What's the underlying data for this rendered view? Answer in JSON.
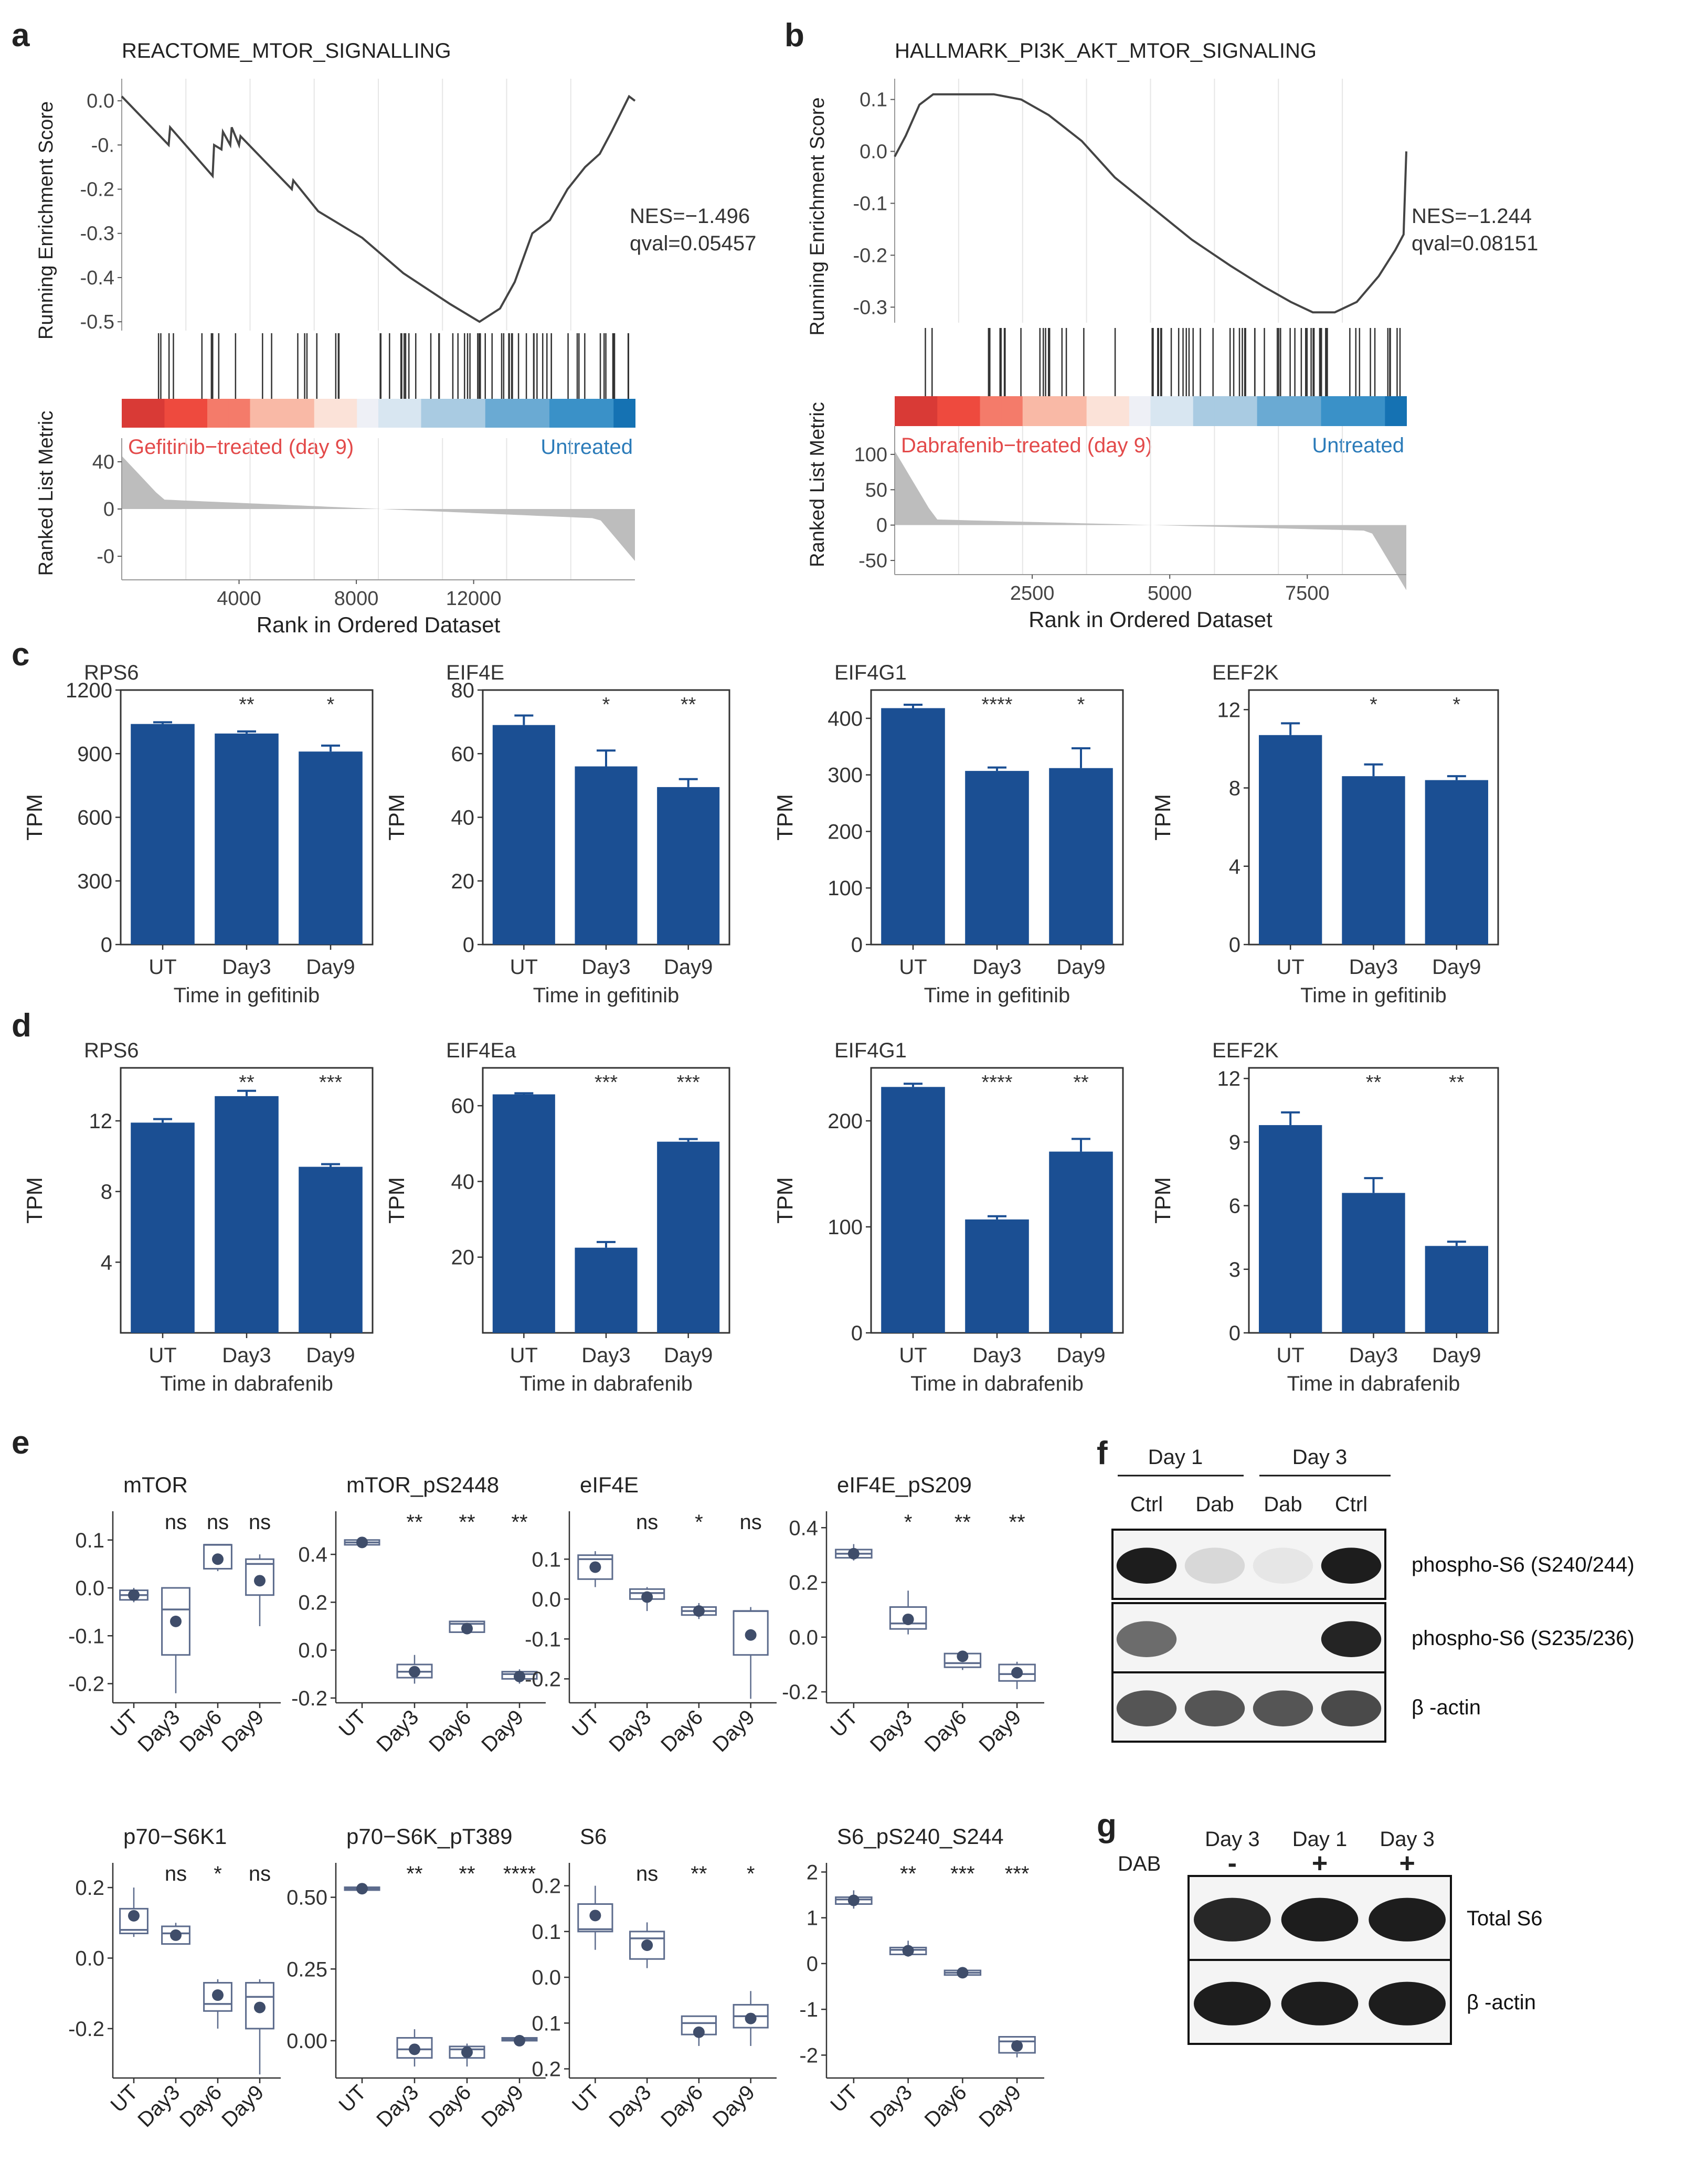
{
  "colors": {
    "bar": "#1b4f93",
    "box": "#5c6b8c",
    "point": "#3f4d6a",
    "curve": "#444444",
    "grid": "#e6e6e6",
    "metric": "#bdbdbd",
    "red_label": "#e34a4a",
    "blue_label": "#2b7bb9"
  },
  "panel_letters": {
    "a": "a",
    "b": "b",
    "c": "c",
    "d": "d",
    "e": "e",
    "f": "f",
    "g": "g"
  },
  "gsea": [
    {
      "letter": "a",
      "title": "REACTOME_MTOR_SIGNALLING",
      "nes": "NES=−1.496",
      "qval": "qval=0.05457",
      "ylabel_top": "Running Enrichment Score",
      "ylabel_bottom": "Ranked List Metric",
      "xlabel": "Rank in Ordered Dataset",
      "left_label": "Gefitinib−treated (day 9)",
      "right_label": "Untreated",
      "es_ticks": [
        "0.0",
        "-0.",
        "-0.2",
        "-0.3",
        "-0.4",
        "-0.5"
      ],
      "es_tick_values": [
        0,
        -0.1,
        -0.2,
        -0.3,
        -0.4,
        -0.5
      ],
      "es_range": [
        -0.52,
        0.05
      ],
      "metric_ticks": [
        "40",
        "0",
        "-0"
      ],
      "metric_tick_values": [
        40,
        0,
        -40
      ],
      "metric_range": [
        -60,
        60
      ],
      "x_ticks": [
        "4000",
        "8000",
        "12000"
      ],
      "x_tick_values": [
        4000,
        8000,
        12000
      ],
      "x_max": 17500,
      "curve": [
        [
          0,
          0.01
        ],
        [
          1600,
          -0.1
        ],
        [
          1650,
          -0.06
        ],
        [
          3100,
          -0.17
        ],
        [
          3150,
          -0.1
        ],
        [
          3400,
          -0.11
        ],
        [
          3450,
          -0.07
        ],
        [
          3700,
          -0.1
        ],
        [
          3750,
          -0.06
        ],
        [
          4000,
          -0.1
        ],
        [
          4050,
          -0.08
        ],
        [
          5800,
          -0.2
        ],
        [
          5850,
          -0.18
        ],
        [
          6700,
          -0.25
        ],
        [
          8200,
          -0.31
        ],
        [
          9600,
          -0.39
        ],
        [
          11200,
          -0.46
        ],
        [
          12200,
          -0.5
        ],
        [
          12900,
          -0.47
        ],
        [
          13400,
          -0.41
        ],
        [
          14000,
          -0.3
        ],
        [
          14600,
          -0.27
        ],
        [
          15200,
          -0.2
        ],
        [
          15800,
          -0.15
        ],
        [
          16300,
          -0.12
        ],
        [
          16700,
          -0.07
        ],
        [
          17000,
          -0.03
        ],
        [
          17300,
          0.01
        ],
        [
          17500,
          0.0
        ]
      ]
    },
    {
      "letter": "b",
      "title": "HALLMARK_PI3K_AKT_MTOR_SIGNALING",
      "nes": "NES=−1.244",
      "qval": "qval=0.08151",
      "ylabel_top": "Running Enrichment Score",
      "ylabel_bottom": "Ranked List Metric",
      "xlabel": "Rank in Ordered Dataset",
      "left_label": "Dabrafenib−treated (day 9)",
      "right_label": "Untreated",
      "es_ticks": [
        "0.1",
        "0.0",
        "-0.1",
        "-0.2",
        "-0.3"
      ],
      "es_tick_values": [
        0.1,
        0,
        -0.1,
        -0.2,
        -0.3
      ],
      "es_range": [
        -0.33,
        0.14
      ],
      "metric_ticks": [
        "100",
        "50",
        "0",
        "-50"
      ],
      "metric_tick_values": [
        100,
        50,
        0,
        -50
      ],
      "metric_range": [
        -70,
        140
      ],
      "x_ticks": [
        "2500",
        "5000",
        "7500"
      ],
      "x_tick_values": [
        2500,
        5000,
        7500
      ],
      "x_max": 9300,
      "curve": [
        [
          0,
          -0.01
        ],
        [
          200,
          0.03
        ],
        [
          450,
          0.09
        ],
        [
          700,
          0.11
        ],
        [
          1200,
          0.11
        ],
        [
          1800,
          0.11
        ],
        [
          2300,
          0.1
        ],
        [
          2800,
          0.07
        ],
        [
          3400,
          0.02
        ],
        [
          4000,
          -0.05
        ],
        [
          4700,
          -0.11
        ],
        [
          5400,
          -0.17
        ],
        [
          6100,
          -0.22
        ],
        [
          6700,
          -0.26
        ],
        [
          7200,
          -0.29
        ],
        [
          7600,
          -0.31
        ],
        [
          8000,
          -0.31
        ],
        [
          8400,
          -0.29
        ],
        [
          8800,
          -0.24
        ],
        [
          9100,
          -0.19
        ],
        [
          9250,
          -0.16
        ],
        [
          9300,
          0.0
        ]
      ]
    }
  ],
  "bar_rows": [
    {
      "letter": "c",
      "xlabel": "Time in gefitinib",
      "charts": [
        {
          "title": "RPS6",
          "ylabel": "TPM",
          "yticks": [
            "0",
            "300",
            "600",
            "900",
            "1200"
          ],
          "ymax": 1200,
          "categories": [
            "UT",
            "Day3",
            "Day9"
          ],
          "values": [
            1040,
            995,
            910
          ],
          "errors": [
            8,
            10,
            28
          ],
          "signif": [
            "",
            "**",
            "*"
          ]
        },
        {
          "title": "EIF4E",
          "ylabel": "TPM",
          "yticks": [
            "0",
            "20",
            "40",
            "60",
            "80"
          ],
          "ymax": 80,
          "categories": [
            "UT",
            "Day3",
            "Day9"
          ],
          "values": [
            69,
            56,
            49.5
          ],
          "errors": [
            3,
            5,
            2.5
          ],
          "signif": [
            "",
            "*",
            "**"
          ]
        },
        {
          "title": "EIF4G1",
          "ylabel": "TPM",
          "yticks": [
            "0",
            "100",
            "200",
            "300",
            "400"
          ],
          "ymax": 450,
          "categories": [
            "UT",
            "Day3",
            "Day9"
          ],
          "values": [
            418,
            307,
            312
          ],
          "errors": [
            6,
            6,
            35
          ],
          "signif": [
            "",
            "****",
            "*"
          ]
        },
        {
          "title": "EEF2K",
          "ylabel": "TPM",
          "yticks": [
            "0",
            "4",
            "8",
            "12"
          ],
          "ymax": 13,
          "categories": [
            "UT",
            "Day3",
            "Day9"
          ],
          "values": [
            10.7,
            8.6,
            8.4
          ],
          "errors": [
            0.6,
            0.6,
            0.2
          ],
          "signif": [
            "",
            "*",
            "*"
          ]
        }
      ]
    },
    {
      "letter": "d",
      "xlabel": "Time in dabrafenib",
      "charts": [
        {
          "title": "RPS6",
          "ylabel": "TPM",
          "yticks": [
            "4",
            "8",
            "12"
          ],
          "ytick_values": [
            4,
            8,
            12
          ],
          "ymax": 15,
          "categories": [
            "UT",
            "Day3",
            "Day9"
          ],
          "values": [
            11.9,
            13.4,
            9.4
          ],
          "errors": [
            0.2,
            0.3,
            0.15
          ],
          "signif": [
            "",
            "**",
            "***"
          ]
        },
        {
          "title": "EIF4Ea",
          "ylabel": "TPM",
          "yticks": [
            "20",
            "40",
            "60"
          ],
          "ytick_values": [
            20,
            40,
            60
          ],
          "ymax": 70,
          "categories": [
            "UT",
            "Day3",
            "Day9"
          ],
          "values": [
            63,
            22.5,
            50.5
          ],
          "errors": [
            0.3,
            1.5,
            0.7
          ],
          "signif": [
            "",
            "***",
            "***"
          ]
        },
        {
          "title": "EIF4G1",
          "ylabel": "TPM",
          "yticks": [
            "0",
            "100",
            "200"
          ],
          "ytick_values": [
            0,
            100,
            200
          ],
          "ymax": 250,
          "categories": [
            "UT",
            "Day3",
            "Day9"
          ],
          "values": [
            232,
            107,
            171
          ],
          "errors": [
            3,
            3,
            12
          ],
          "signif": [
            "",
            "****",
            "**"
          ]
        },
        {
          "title": "EEF2K",
          "ylabel": "TPM",
          "yticks": [
            "0",
            "3",
            "6",
            "9",
            "12"
          ],
          "ytick_values": [
            0,
            3,
            6,
            9,
            12
          ],
          "ymax": 12.5,
          "categories": [
            "UT",
            "Day3",
            "Day9"
          ],
          "values": [
            9.8,
            6.6,
            4.1
          ],
          "errors": [
            0.6,
            0.7,
            0.2
          ],
          "signif": [
            "",
            "**",
            "**"
          ]
        }
      ]
    }
  ],
  "rppa": {
    "letter": "e",
    "categories": [
      "UT",
      "Day3",
      "Day6",
      "Day9"
    ],
    "charts": [
      {
        "title": "mTOR",
        "yticks": [
          "0.1",
          "0.0",
          "-0.1",
          "-0.2"
        ],
        "ytick_values": [
          0.1,
          0,
          -0.1,
          -0.2
        ],
        "yrange": [
          -0.24,
          0.16
        ],
        "signif": [
          "",
          "ns",
          "ns",
          "ns"
        ],
        "boxes": [
          [
            -0.03,
            -0.025,
            -0.015,
            -0.005,
            0.0
          ],
          [
            -0.22,
            -0.14,
            -0.045,
            0.0,
            0.0
          ],
          [
            0.035,
            0.04,
            0.09,
            0.09,
            0.09
          ],
          [
            -0.08,
            -0.015,
            0.05,
            0.06,
            0.07
          ]
        ],
        "means": [
          -0.015,
          -0.07,
          0.06,
          0.015
        ]
      },
      {
        "title": "mTOR_pS2448",
        "yticks": [
          "0.4",
          "0.2",
          "0.0",
          "-0.2"
        ],
        "ytick_values": [
          0.4,
          0.2,
          0,
          -0.2
        ],
        "yrange": [
          -0.22,
          0.58
        ],
        "signif": [
          "",
          "**",
          "**",
          "**"
        ],
        "boxes": [
          [
            0.43,
            0.44,
            0.45,
            0.46,
            0.47
          ],
          [
            -0.14,
            -0.115,
            -0.09,
            -0.06,
            -0.02
          ],
          [
            0.07,
            0.075,
            0.11,
            0.12,
            0.12
          ],
          [
            -0.14,
            -0.12,
            -0.1,
            -0.09,
            -0.08
          ]
        ],
        "means": [
          0.45,
          -0.09,
          0.09,
          -0.11
        ]
      },
      {
        "title": "eIF4E",
        "yticks": [
          "0.1",
          "0.0",
          "-0.1",
          "-0.2"
        ],
        "ytick_values": [
          0.1,
          0,
          -0.1,
          -0.2
        ],
        "yrange": [
          -0.26,
          0.22
        ],
        "signif": [
          "",
          "ns",
          "*",
          "ns"
        ],
        "boxes": [
          [
            0.03,
            0.05,
            0.1,
            0.11,
            0.12
          ],
          [
            -0.03,
            0.0,
            0.015,
            0.025,
            0.03
          ],
          [
            -0.05,
            -0.04,
            -0.03,
            -0.02,
            -0.01
          ],
          [
            -0.25,
            -0.14,
            -0.03,
            -0.03,
            -0.02
          ]
        ],
        "means": [
          0.08,
          0.005,
          -0.03,
          -0.09
        ]
      },
      {
        "title": "eIF4E_pS209",
        "yticks": [
          "0.4",
          "0.2",
          "0.0",
          "-0.2"
        ],
        "ytick_values": [
          0.4,
          0.2,
          0,
          -0.2
        ],
        "yrange": [
          -0.24,
          0.46
        ],
        "signif": [
          "",
          "*",
          "**",
          "**"
        ],
        "boxes": [
          [
            0.28,
            0.29,
            0.305,
            0.32,
            0.34
          ],
          [
            0.01,
            0.03,
            0.05,
            0.11,
            0.17
          ],
          [
            -0.12,
            -0.11,
            -0.095,
            -0.06,
            -0.05
          ],
          [
            -0.19,
            -0.16,
            -0.135,
            -0.1,
            -0.09
          ]
        ],
        "means": [
          0.305,
          0.065,
          -0.07,
          -0.13
        ]
      },
      {
        "title": "p70−S6K1",
        "yticks": [
          "0.2",
          "0.0",
          "-0.2"
        ],
        "ytick_values": [
          0.2,
          0,
          -0.2
        ],
        "yrange": [
          -0.34,
          0.27
        ],
        "signif": [
          "",
          "ns",
          "*",
          "ns"
        ],
        "boxes": [
          [
            0.06,
            0.07,
            0.08,
            0.14,
            0.2
          ],
          [
            0.04,
            0.04,
            0.07,
            0.09,
            0.1
          ],
          [
            -0.2,
            -0.15,
            -0.13,
            -0.07,
            -0.06
          ],
          [
            -0.33,
            -0.2,
            -0.11,
            -0.07,
            -0.06
          ]
        ],
        "means": [
          0.12,
          0.065,
          -0.105,
          -0.14
        ]
      },
      {
        "title": "p70−S6K_pT389",
        "yticks": [
          "0.50",
          "0.25",
          "0.00"
        ],
        "ytick_values": [
          0.5,
          0.25,
          0
        ],
        "yrange": [
          -0.13,
          0.62
        ],
        "signif": [
          "",
          "**",
          "**",
          "****"
        ],
        "boxes": [
          [
            0.525,
            0.525,
            0.53,
            0.535,
            0.54
          ],
          [
            -0.09,
            -0.06,
            -0.03,
            0.01,
            0.04
          ],
          [
            -0.09,
            -0.06,
            -0.03,
            -0.02,
            -0.01
          ],
          [
            -0.01,
            0.0,
            0.005,
            0.01,
            0.02
          ]
        ],
        "means": [
          0.53,
          -0.03,
          -0.04,
          0.0
        ]
      },
      {
        "title": "S6",
        "yticks": [
          "0.2",
          "0.1",
          "0.0",
          "0.1",
          "0.2"
        ],
        "ytick_values": [
          0.2,
          0.1,
          0,
          -0.1,
          -0.2
        ],
        "yrange": [
          -0.22,
          0.25
        ],
        "signif": [
          "",
          "ns",
          "**",
          "*"
        ],
        "boxes": [
          [
            0.06,
            0.1,
            0.105,
            0.16,
            0.2
          ],
          [
            0.02,
            0.04,
            0.085,
            0.1,
            0.12
          ],
          [
            -0.15,
            -0.125,
            -0.1,
            -0.085,
            -0.085
          ],
          [
            -0.15,
            -0.11,
            -0.085,
            -0.06,
            -0.03
          ]
        ],
        "means": [
          0.135,
          0.07,
          -0.12,
          -0.09
        ]
      },
      {
        "title": "S6_pS240_S244",
        "yticks": [
          "2",
          "1",
          "0",
          "-1",
          "-2"
        ],
        "ytick_values": [
          2,
          1,
          0,
          -1,
          -2
        ],
        "yrange": [
          -2.5,
          2.2
        ],
        "signif": [
          "",
          "**",
          "***",
          "***"
        ],
        "boxes": [
          [
            1.2,
            1.3,
            1.4,
            1.45,
            1.6
          ],
          [
            0.15,
            0.2,
            0.3,
            0.35,
            0.5
          ],
          [
            -0.3,
            -0.25,
            -0.2,
            -0.15,
            -0.1
          ],
          [
            -2.05,
            -1.95,
            -1.7,
            -1.6,
            -1.6
          ]
        ],
        "means": [
          1.38,
          0.28,
          -0.2,
          -1.8
        ]
      }
    ]
  },
  "blot_f": {
    "letter": "f",
    "day_labels": [
      "Day 1",
      "Day 3"
    ],
    "lanes": [
      "Ctrl",
      "Dab",
      "Dab",
      "Ctrl"
    ],
    "rows": [
      {
        "label": "phospho-S6 (S240/244)",
        "bands": [
          0.95,
          0.12,
          0.06,
          0.95
        ]
      },
      {
        "label": "phospho-S6 (S235/236)",
        "bands": [
          0.6,
          0.0,
          0.0,
          0.92
        ]
      },
      {
        "label": "β -actin",
        "bands": [
          0.7,
          0.7,
          0.7,
          0.75
        ]
      }
    ]
  },
  "blot_g": {
    "letter": "g",
    "lanes": [
      "Day 3",
      "Day 1",
      "Day 3"
    ],
    "dab_label": "DAB",
    "dab_marks": [
      "-",
      "+",
      "+"
    ],
    "rows": [
      {
        "label": "Total S6",
        "bands": [
          0.9,
          0.95,
          0.95
        ]
      },
      {
        "label": "β -actin",
        "bands": [
          0.95,
          0.95,
          0.95
        ]
      }
    ]
  }
}
